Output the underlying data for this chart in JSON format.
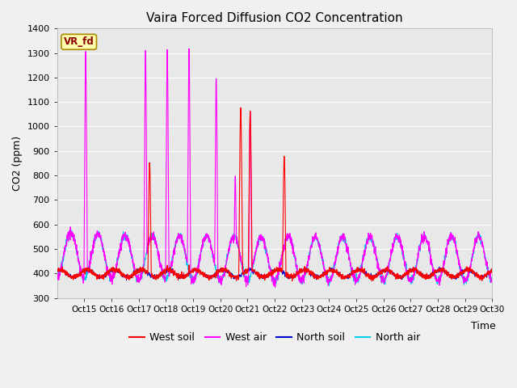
{
  "title": "Vaira Forced Diffusion CO2 Concentration",
  "xlabel": "Time",
  "ylabel": "CO2 (ppm)",
  "ylim": [
    300,
    1400
  ],
  "yticks": [
    300,
    400,
    500,
    600,
    700,
    800,
    900,
    1000,
    1100,
    1200,
    1300,
    1400
  ],
  "fig_bg_color": "#f0f0f0",
  "plot_bg_color": "#e8e8e8",
  "legend_label": "VR_fd",
  "west_soil_color": "#ff0000",
  "west_air_color": "#ff00ff",
  "north_soil_color": "#0000cc",
  "north_air_color": "#00ccee",
  "grid_color": "#ffffff",
  "xtick_labels": [
    "Oct 15",
    "Oct 16",
    "Oct 17",
    "Oct 18",
    "Oct 19",
    "Oct 20",
    "Oct 21",
    "Oct 22",
    "Oct 23",
    "Oct 24",
    "Oct 25",
    "Oct 26",
    "Oct 27",
    "Oct 28",
    "Oct 29",
    "Oct 30"
  ]
}
